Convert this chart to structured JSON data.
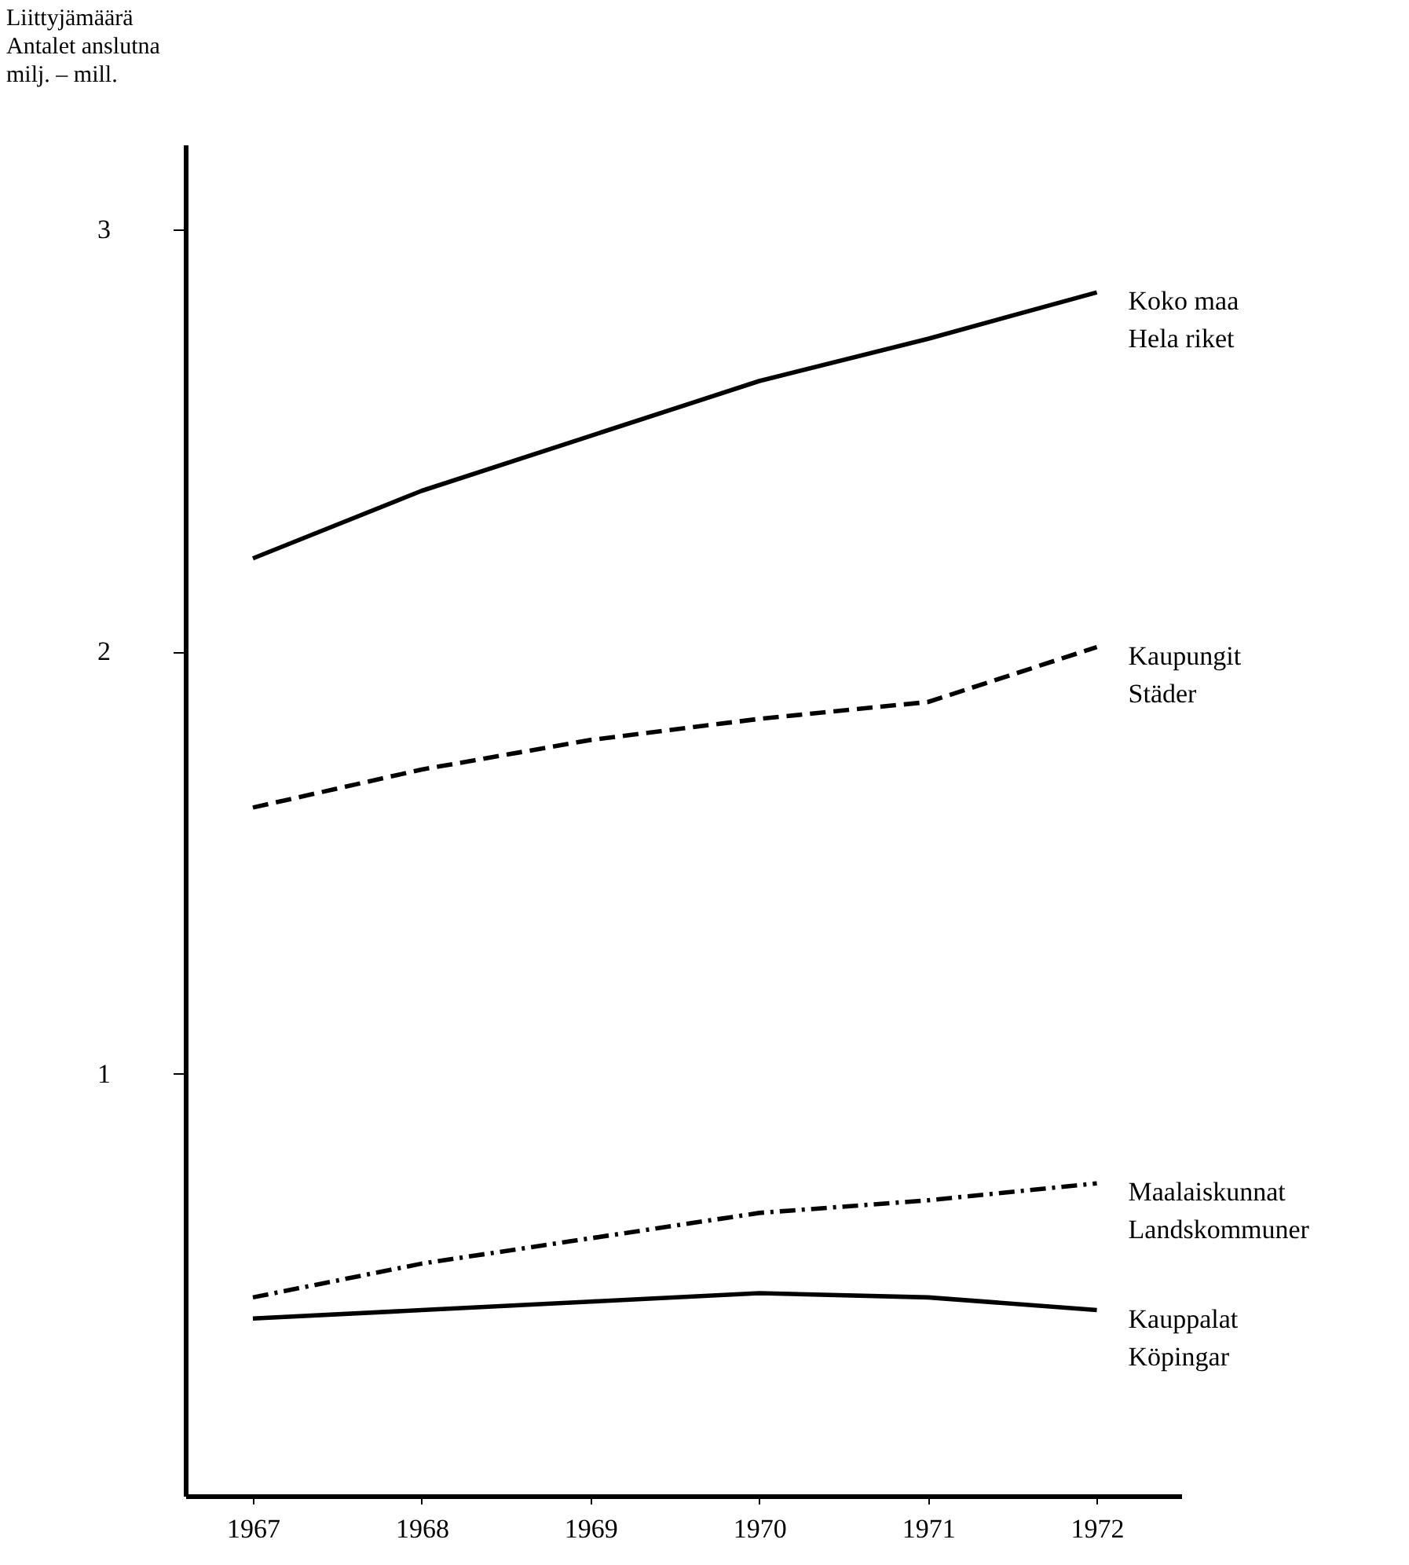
{
  "chart_data": {
    "type": "line",
    "ylabel": "Liittyjämäärä\nAntalet anslutna\nmilj. – mill.",
    "x": [
      1967,
      1968,
      1969,
      1970,
      1971,
      1972
    ],
    "xlim": [
      1966.6,
      1972.5
    ],
    "xticks": [
      1967,
      1968,
      1969,
      1970,
      1971,
      1972
    ],
    "ylim": [
      0,
      3.2
    ],
    "yticks": [
      1,
      2,
      3
    ],
    "grid": false,
    "marker": "none",
    "series": [
      {
        "name": "Koko maa\nHela riket",
        "color": "#000000",
        "line_style": "solid",
        "values": [
          2.22,
          2.38,
          2.51,
          2.64,
          2.74,
          2.85
        ]
      },
      {
        "name": "Kaupungit\nStäder",
        "color": "#000000",
        "line_style": "dashed",
        "values": [
          1.63,
          1.72,
          1.79,
          1.84,
          1.88,
          2.01
        ]
      },
      {
        "name": "Maalaiskunnat\nLandskommuner",
        "color": "#000000",
        "line_style": "dotted",
        "values": [
          0.47,
          0.55,
          0.61,
          0.67,
          0.7,
          0.74
        ]
      },
      {
        "name": "Kauppalat\nKöpingar",
        "color": "#000000",
        "line_style": "solid",
        "values": [
          0.42,
          0.44,
          0.46,
          0.48,
          0.47,
          0.44
        ]
      }
    ]
  }
}
